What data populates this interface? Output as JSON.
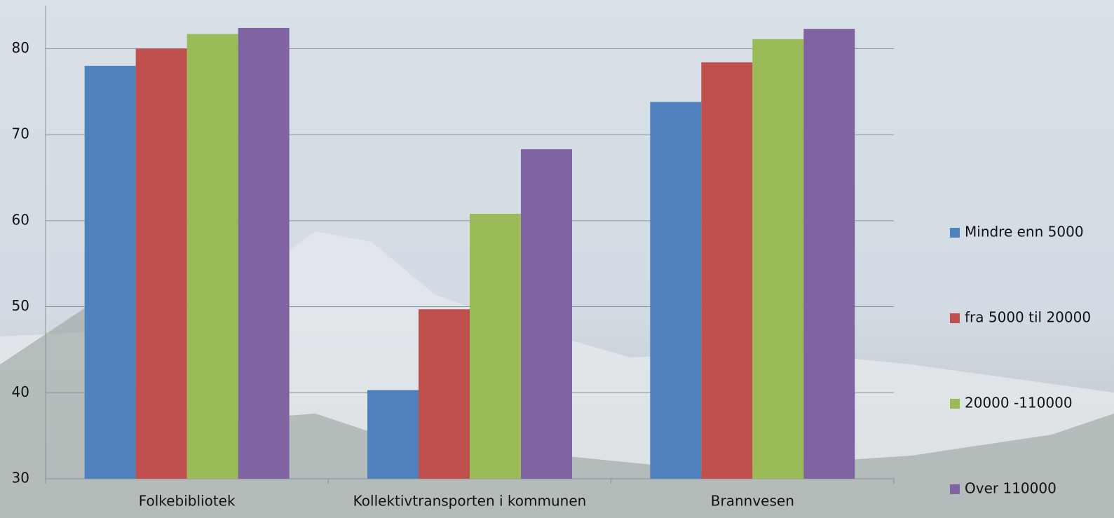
{
  "chart_data": {
    "type": "bar",
    "categories": [
      "Folkebibliotek",
      "Kollektivtransporten i kommunen",
      "Brannvesen"
    ],
    "series": [
      {
        "name": "Mindre enn 5000",
        "color": "#4f81bd",
        "values": [
          78.0,
          40.3,
          73.8
        ]
      },
      {
        "name": "fra 5000 til 20000",
        "color": "#c0504d",
        "values": [
          80.0,
          49.7,
          78.4
        ]
      },
      {
        "name": "20000 -110000",
        "color": "#9bbb59",
        "values": [
          81.7,
          60.8,
          81.1
        ]
      },
      {
        "name": "Over 110000",
        "color": "#8064a2",
        "values": [
          82.4,
          68.3,
          82.3
        ]
      }
    ],
    "ylim": [
      30,
      85
    ],
    "yticks": [
      30,
      40,
      50,
      60,
      70,
      80
    ],
    "grid": true,
    "legend": "right"
  }
}
